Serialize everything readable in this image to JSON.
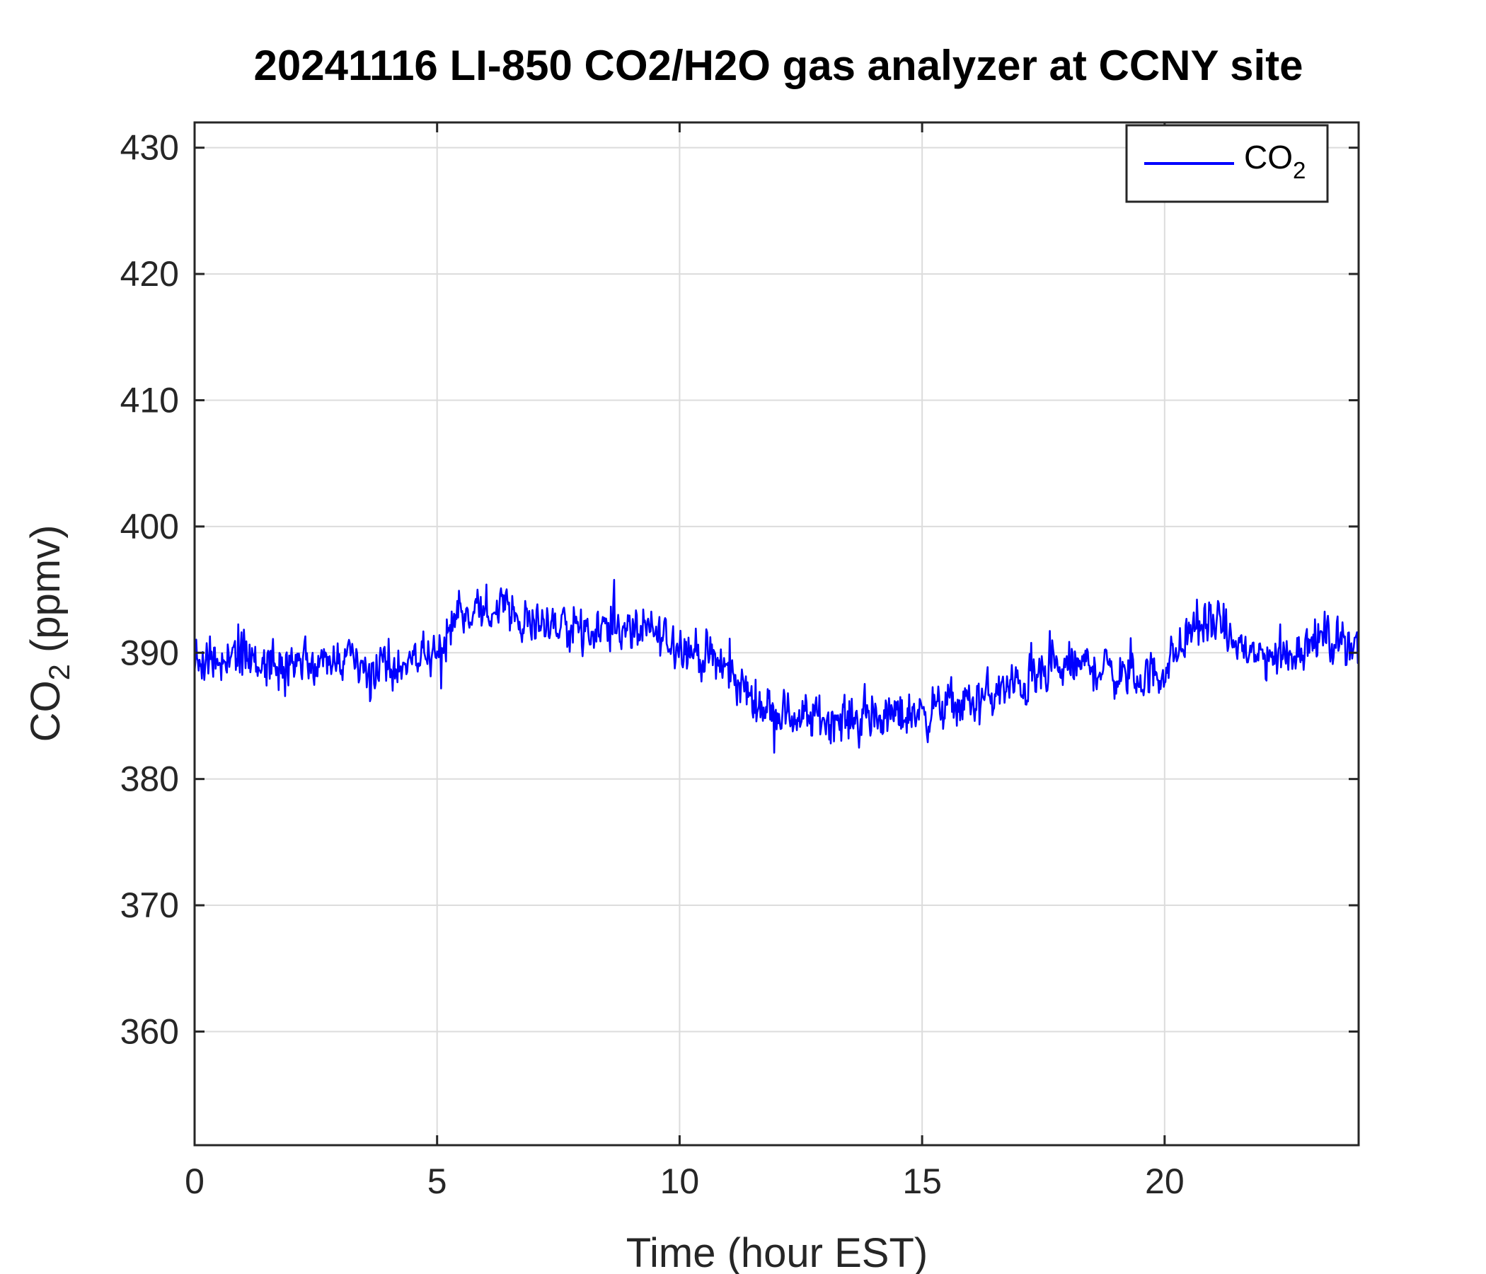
{
  "chart_data": {
    "type": "line",
    "title": "20241116 LI-850 CO2/H2O gas analyzer at CCNY site",
    "xlabel": "Time (hour EST)",
    "ylabel": {
      "main": "CO",
      "sub": "2",
      "rest": " (ppmv)"
    },
    "xlim": [
      0,
      24
    ],
    "ylim": [
      351,
      432
    ],
    "xticks": [
      0,
      5,
      10,
      15,
      20
    ],
    "yticks": [
      360,
      370,
      380,
      390,
      400,
      410,
      420,
      430
    ],
    "grid": true,
    "legend_position": "top-right",
    "colors": {
      "series": "#0000FF",
      "axes": "#262626",
      "grid": "#dcdcdc"
    },
    "series": [
      {
        "legend": {
          "main": "CO",
          "sub": "2"
        },
        "x": [
          0,
          0.5,
          1,
          1.5,
          2,
          2.5,
          3,
          3.5,
          4,
          4.5,
          5,
          5.5,
          6,
          6.5,
          7,
          7.5,
          8,
          8.5,
          9,
          9.5,
          10,
          10.5,
          11,
          11.5,
          12,
          12.5,
          13,
          13.5,
          14,
          14.5,
          15,
          15.5,
          16,
          16.5,
          17,
          17.5,
          18,
          18.5,
          19,
          19.5,
          20,
          20.5,
          21,
          21.5,
          22,
          22.5,
          23,
          23.5,
          24
        ],
        "values": [
          389.5,
          389.2,
          389.6,
          389.0,
          389.3,
          388.8,
          388.9,
          389.0,
          389.2,
          389.5,
          390.2,
          392.8,
          393.5,
          393.0,
          392.6,
          392.3,
          392.0,
          392.1,
          391.8,
          391.4,
          390.9,
          389.7,
          388.5,
          386.4,
          385.3,
          384.8,
          384.9,
          384.7,
          384.8,
          385.0,
          385.4,
          385.7,
          386.0,
          386.7,
          387.4,
          388.1,
          388.8,
          389.0,
          388.4,
          387.9,
          388.6,
          391.6,
          392.4,
          390.6,
          389.6,
          389.8,
          390.9,
          391.2,
          390.6
        ],
        "noise_amplitude": 2.3
      }
    ]
  }
}
